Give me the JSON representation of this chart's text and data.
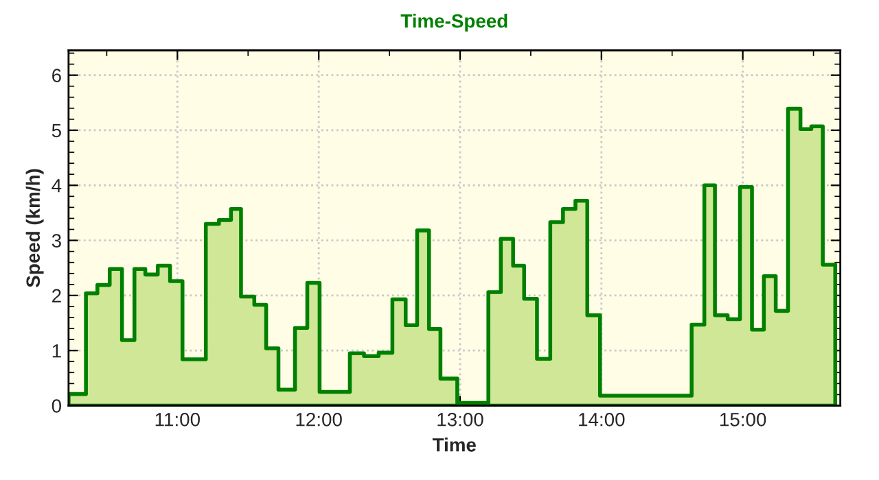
{
  "chart_data": {
    "type": "area",
    "title": "Time-Speed",
    "xlabel": "Time",
    "ylabel": "Speed (km/h)",
    "x": [
      10.23,
      10.353,
      10.434,
      10.521,
      10.608,
      10.696,
      10.773,
      10.861,
      10.948,
      11.036,
      11.201,
      11.294,
      11.379,
      11.45,
      11.544,
      11.628,
      11.715,
      11.832,
      11.919,
      12.006,
      12.22,
      12.32,
      12.424,
      12.521,
      12.615,
      12.696,
      12.78,
      12.861,
      12.98,
      13.2,
      13.288,
      13.375,
      13.453,
      13.544,
      13.638,
      13.728,
      13.816,
      13.9,
      13.99,
      14.638,
      14.728,
      14.803,
      14.893,
      14.98,
      15.065,
      15.149,
      15.233,
      15.32,
      15.408,
      15.485,
      15.566,
      15.654
    ],
    "series": [
      {
        "color": "#008000",
        "values": [
          0.21,
          2.04,
          2.19,
          2.48,
          1.19,
          2.48,
          2.38,
          2.54,
          2.26,
          0.84,
          3.3,
          3.37,
          3.57,
          1.98,
          1.83,
          1.04,
          0.29,
          1.41,
          2.23,
          0.25,
          0.95,
          0.9,
          0.96,
          1.93,
          1.46,
          3.18,
          1.39,
          0.49,
          0.05,
          2.06,
          3.03,
          2.54,
          1.94,
          0.85,
          3.33,
          3.57,
          3.72,
          1.64,
          0.18,
          1.47,
          4.0,
          1.64,
          1.57,
          3.97,
          1.38,
          2.35,
          1.72,
          5.39,
          5.02,
          5.07,
          2.56,
          2.56
        ]
      }
    ],
    "xlim": [
      10.23,
      15.69
    ],
    "ylim": [
      0,
      6.45
    ],
    "xticks": [
      {
        "value": 11,
        "label": "11:00"
      },
      {
        "value": 12,
        "label": "12:00"
      },
      {
        "value": 13,
        "label": "13:00"
      },
      {
        "value": 14,
        "label": "14:00"
      },
      {
        "value": 15,
        "label": "15:00"
      }
    ],
    "yticks": [
      0,
      1,
      2,
      3,
      4,
      5,
      6
    ],
    "grid": true,
    "line_style": "solid",
    "marker": "none"
  }
}
